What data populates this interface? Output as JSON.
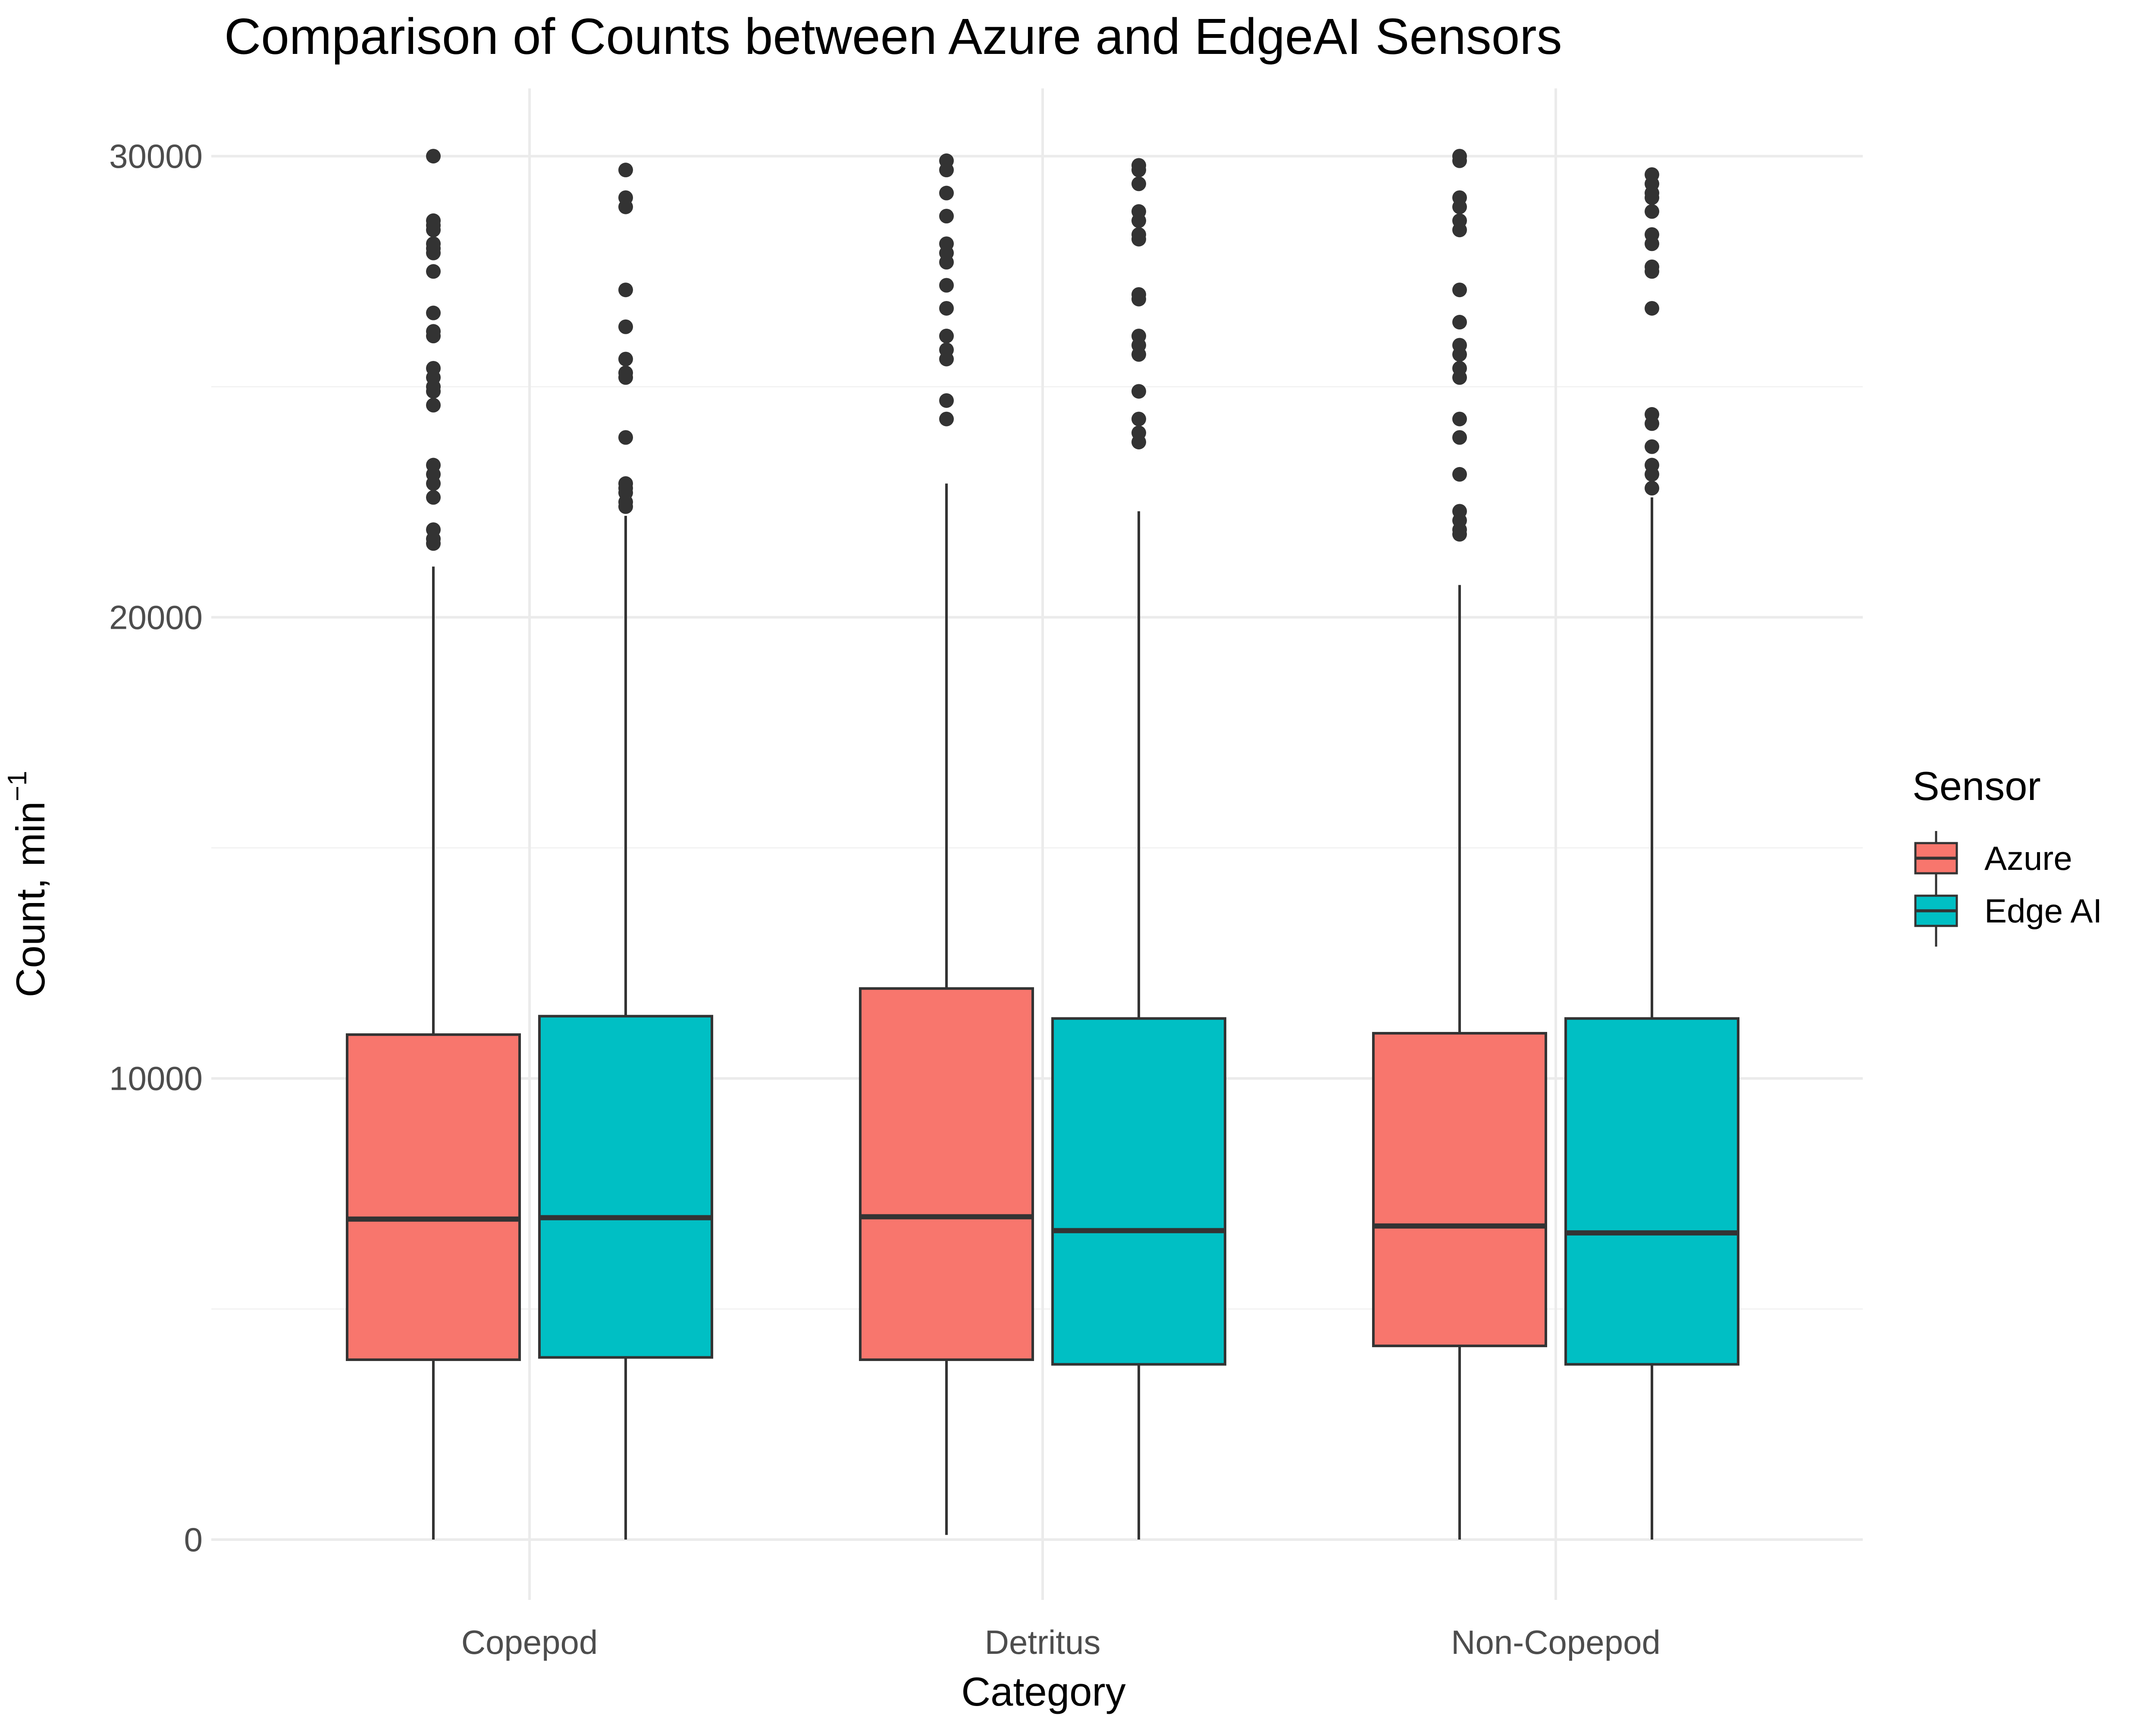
{
  "chart_data": {
    "type": "boxplot",
    "title": "Comparison of Counts between Azure and EdgeAI Sensors",
    "xlabel": "Category",
    "ylabel": "Count, min",
    "ylabel_superscript": "−1",
    "categories": [
      "Copepod",
      "Detritus",
      "Non-Copepod"
    ],
    "y_ticks": [
      "0",
      "10000",
      "20000",
      "30000"
    ],
    "y_tick_values": [
      0,
      10000,
      20000,
      30000
    ],
    "ylim": [
      -1500,
      31500
    ],
    "grid": true,
    "legend": {
      "title": "Sensor",
      "position": "right",
      "entries": [
        "Azure",
        "Edge AI"
      ]
    },
    "colors": {
      "Azure": "#F8766D",
      "Edge AI": "#00BFC4",
      "outline": "#333333"
    },
    "series": [
      {
        "name": "Azure",
        "boxes": [
          {
            "category": "Copepod",
            "whisker_low": 0,
            "q1": 3900,
            "median": 6950,
            "q3": 10950,
            "whisker_high": 21100,
            "outliers": [
              30000,
              28600,
              28500,
              28400,
              28100,
              28000,
              27900,
              27500,
              26600,
              26200,
              26100,
              25400,
              25200,
              25000,
              24900,
              24600,
              23300,
              23100,
              22900,
              22600,
              21900,
              21700,
              21600
            ]
          },
          {
            "category": "Detritus",
            "whisker_low": 100,
            "q1": 3900,
            "median": 7000,
            "q3": 11950,
            "whisker_high": 22900,
            "outliers": [
              29900,
              29700,
              29200,
              28700,
              28100,
              27900,
              27700,
              27200,
              26700,
              26100,
              25800,
              25600,
              24700,
              24300
            ]
          },
          {
            "category": "Non-Copepod",
            "whisker_low": 0,
            "q1": 4200,
            "median": 6800,
            "q3": 10980,
            "whisker_high": 20700,
            "outliers": [
              30000,
              29900,
              29100,
              28900,
              28600,
              28400,
              27100,
              26400,
              25900,
              25700,
              25400,
              25200,
              24300,
              23900,
              23100,
              22300,
              22100,
              21900,
              21800
            ]
          }
        ]
      },
      {
        "name": "Edge AI",
        "boxes": [
          {
            "category": "Copepod",
            "whisker_low": 0,
            "q1": 3950,
            "median": 6980,
            "q3": 11350,
            "whisker_high": 22200,
            "outliers": [
              29700,
              29100,
              28900,
              27100,
              26300,
              25600,
              25300,
              25200,
              23900,
              22900,
              22800,
              22700,
              22500,
              22400
            ]
          },
          {
            "category": "Detritus",
            "whisker_low": 0,
            "q1": 3800,
            "median": 6700,
            "q3": 11300,
            "whisker_high": 22300,
            "outliers": [
              29800,
              29700,
              29400,
              28800,
              28600,
              28300,
              28200,
              27000,
              26900,
              26100,
              25900,
              25700,
              24900,
              24300,
              24000,
              23800
            ]
          },
          {
            "category": "Non-Copepod",
            "whisker_low": 0,
            "q1": 3800,
            "median": 6650,
            "q3": 11300,
            "whisker_high": 22600,
            "outliers": [
              29600,
              29400,
              29200,
              29100,
              28800,
              28300,
              28100,
              27600,
              27500,
              26700,
              24400,
              24200,
              23700,
              23300,
              23100,
              22800
            ]
          }
        ]
      }
    ]
  }
}
